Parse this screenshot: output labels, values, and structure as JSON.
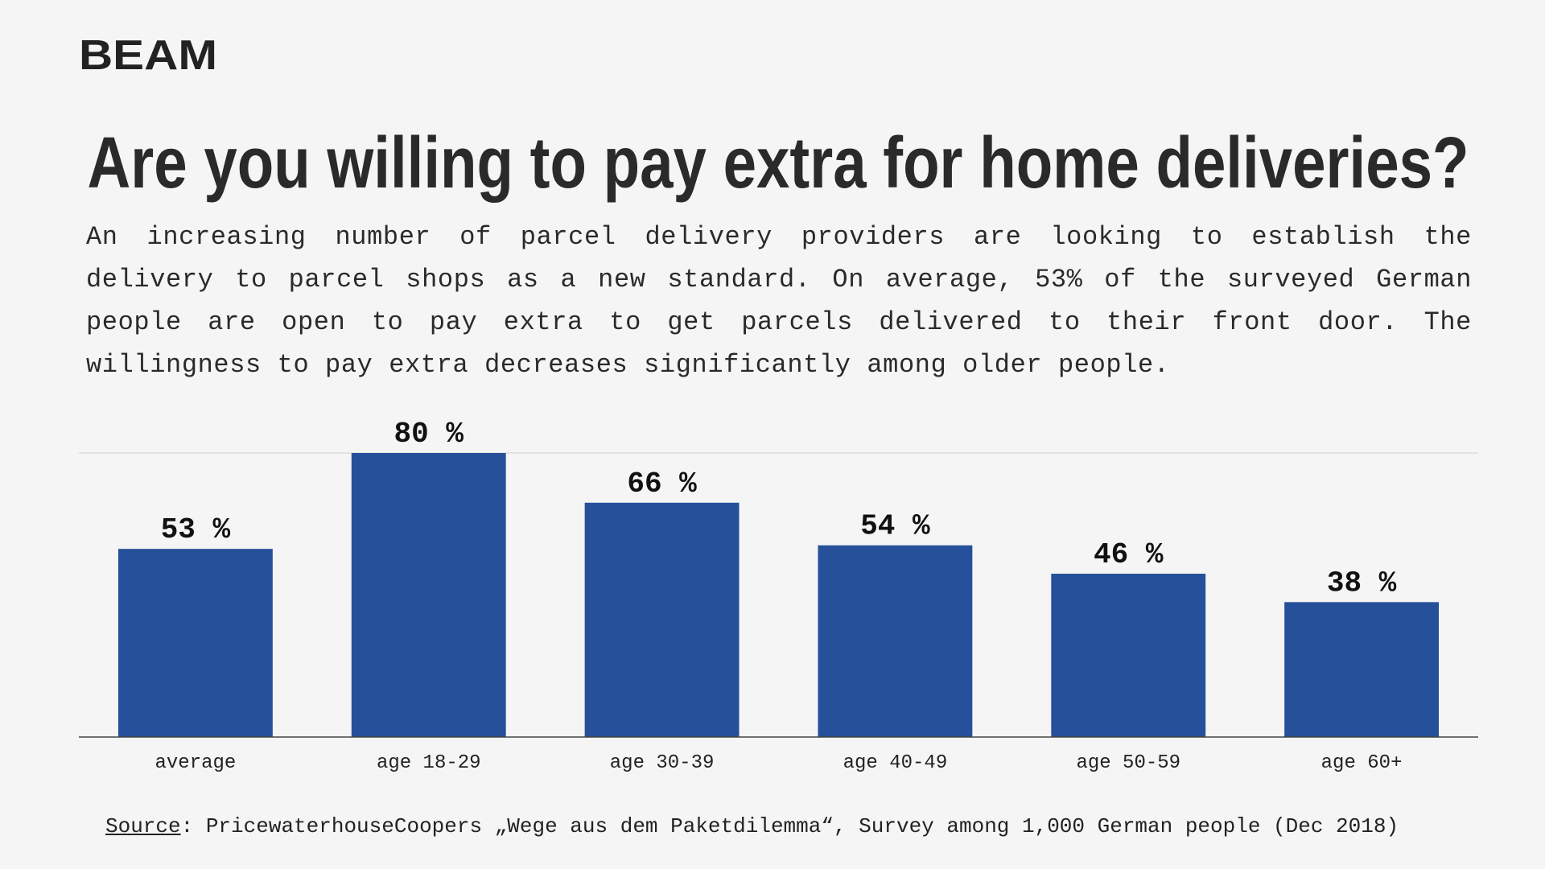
{
  "logo": "BEAM",
  "chart_data": {
    "type": "bar",
    "title": "Are you willing to pay extra for home deliveries?",
    "subtitle": "An increasing number of parcel delivery providers are looking to establish the delivery to parcel shops as a new standard. On average, 53% of the surveyed German people are open to pay extra to get parcels delivered to their front door. The willingness to pay extra decreases significantly among older people.",
    "categories": [
      "average",
      "age 18-29",
      "age 30-39",
      "age 40-49",
      "age 50-59",
      "age 60+"
    ],
    "values": [
      53,
      80,
      66,
      54,
      46,
      38
    ],
    "value_labels": [
      "53 %",
      "80 %",
      "66 %",
      "54 %",
      "46 %",
      "38 %"
    ],
    "color": "#27509b",
    "ylim": [
      0,
      80
    ],
    "source_label": "Source",
    "source_text": ": PricewaterhouseCoopers „Wege aus dem Paketdilemma“, Survey among 1,000 German people (Dec 2018)"
  }
}
